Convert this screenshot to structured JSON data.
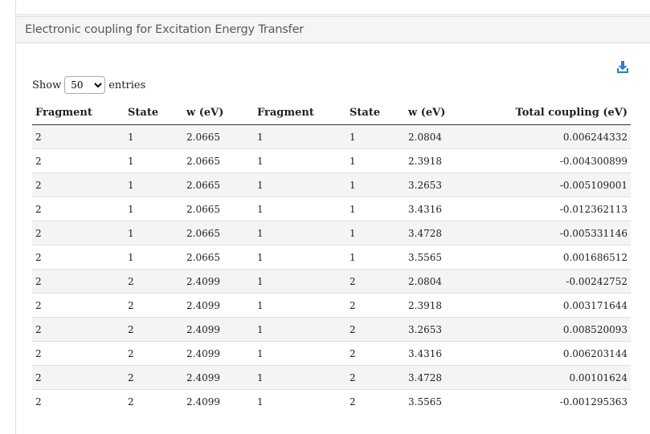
{
  "panel": {
    "title": "Electronic coupling for Excitation Energy Transfer"
  },
  "length": {
    "show_label": "Show",
    "selected": "50",
    "entries_label": "entries",
    "options": [
      "50"
    ]
  },
  "table": {
    "headers": [
      "Fragment",
      "State",
      "w (eV)",
      "Fragment",
      "State",
      "w (eV)",
      "Total coupling (eV)"
    ],
    "rows": [
      [
        "2",
        "1",
        "2.0665",
        "1",
        "1",
        "2.0804",
        "0.006244332"
      ],
      [
        "2",
        "1",
        "2.0665",
        "1",
        "1",
        "2.3918",
        "-0.004300899"
      ],
      [
        "2",
        "1",
        "2.0665",
        "1",
        "1",
        "3.2653",
        "-0.005109001"
      ],
      [
        "2",
        "1",
        "2.0665",
        "1",
        "1",
        "3.4316",
        "-0.012362113"
      ],
      [
        "2",
        "1",
        "2.0665",
        "1",
        "1",
        "3.4728",
        "-0.005331146"
      ],
      [
        "2",
        "1",
        "2.0665",
        "1",
        "1",
        "3.5565",
        "0.001686512"
      ],
      [
        "2",
        "2",
        "2.4099",
        "1",
        "2",
        "2.0804",
        "-0.00242752"
      ],
      [
        "2",
        "2",
        "2.4099",
        "1",
        "2",
        "2.3918",
        "0.003171644"
      ],
      [
        "2",
        "2",
        "2.4099",
        "1",
        "2",
        "3.2653",
        "0.008520093"
      ],
      [
        "2",
        "2",
        "2.4099",
        "1",
        "2",
        "3.4316",
        "0.006203144"
      ],
      [
        "2",
        "2",
        "2.4099",
        "1",
        "2",
        "3.4728",
        "0.00101624"
      ],
      [
        "2",
        "2",
        "2.4099",
        "1",
        "2",
        "3.5565",
        "-0.001295363"
      ]
    ]
  },
  "colors": {
    "accent": "#2a7fc7"
  },
  "icons": {
    "download": "download-icon"
  }
}
